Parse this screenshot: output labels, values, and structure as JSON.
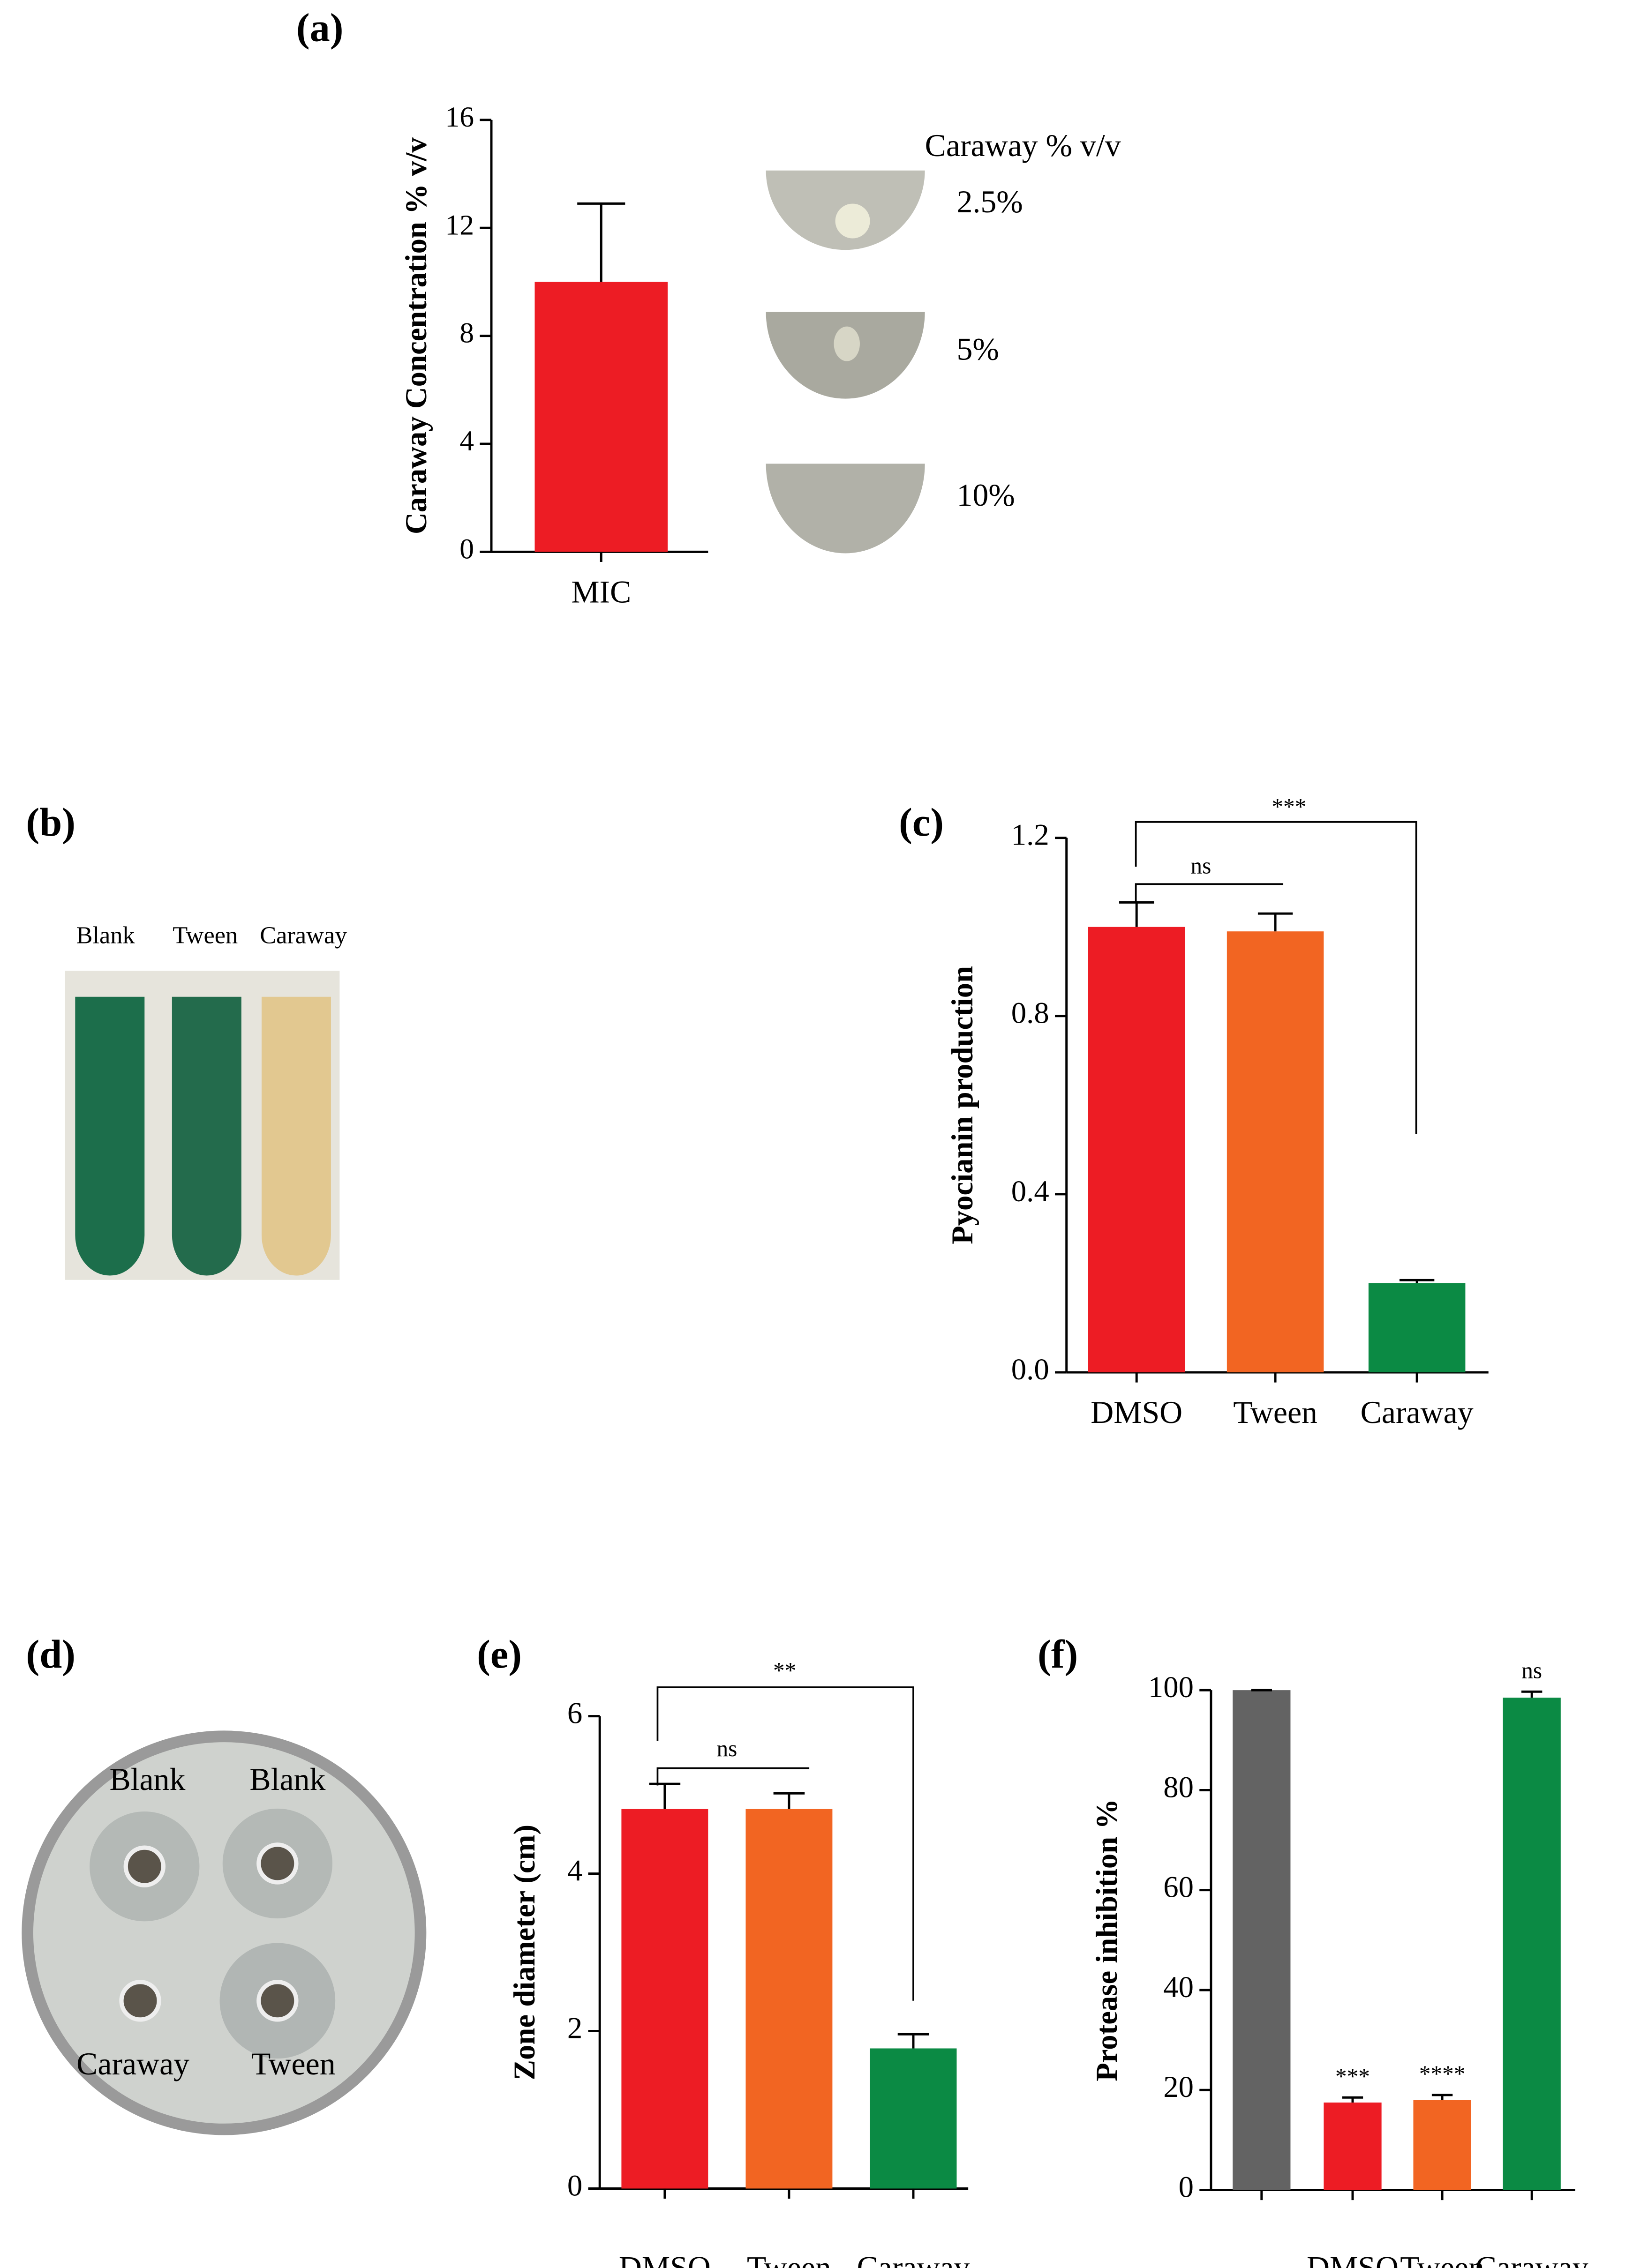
{
  "chart_data": [
    {
      "type": "bar",
      "panel_label": "(a)",
      "ylabel": "Caraway Concentration % v/v",
      "categories": [
        "MIC"
      ],
      "values": [
        10
      ],
      "errors": [
        2.9
      ],
      "colors": [
        "#ed1c24"
      ],
      "ylim": [
        0,
        16
      ],
      "yticks": [
        0,
        4,
        8,
        12,
        16
      ]
    },
    {
      "type": "bar",
      "panel_label": "(c)",
      "ylabel": "Pyocianin production",
      "categories": [
        "DMSO",
        "Tween",
        "Caraway"
      ],
      "values": [
        1.0,
        0.99,
        0.2
      ],
      "errors": [
        0.055,
        0.04,
        0.007
      ],
      "colors": [
        "#ed1c24",
        "#f26522",
        "#0b8a44"
      ],
      "ylim": [
        0,
        1.2
      ],
      "yticks": [
        {
          "value": 0,
          "label": "0.0"
        },
        0.4,
        0.8,
        1.2
      ],
      "annotations": [
        "ns",
        "***"
      ]
    },
    {
      "type": "bar",
      "panel_label": "(e)",
      "ylabel": "Zone diameter (cm)",
      "categories": [
        "DMSO",
        "Tween",
        "Caraway"
      ],
      "values": [
        4.82,
        4.82,
        1.78
      ],
      "errors": [
        0.32,
        0.2,
        0.18
      ],
      "colors": [
        "#ed1c24",
        "#f26522",
        "#0b8a44"
      ],
      "ylim": [
        0,
        6
      ],
      "yticks": [
        0,
        2,
        4,
        6
      ],
      "annotations": [
        "ns",
        "**"
      ]
    },
    {
      "type": "bar",
      "panel_label": "(f)",
      "ylabel": "Protease inhibition %",
      "categories": [
        "-",
        "DMSO",
        "Tween",
        "Caraway"
      ],
      "values": [
        100,
        17.5,
        18,
        98.5
      ],
      "errors": [
        0,
        1,
        1,
        1.2
      ],
      "colors": [
        "#636363",
        "#ed1c24",
        "#f26522",
        "#0b8a44"
      ],
      "ylim": [
        0,
        100
      ],
      "yticks": [
        0,
        20,
        40,
        60,
        80,
        100
      ],
      "bar_labels": [
        null,
        "***",
        "****",
        "ns"
      ]
    }
  ],
  "photos": {
    "plates_a": {
      "title": "Caraway % v/v",
      "labels": [
        "2.5%",
        "5%",
        "10%"
      ]
    },
    "tubes_b": {
      "panel_label": "(b)",
      "labels": [
        "Blank",
        "Tween",
        "Caraway"
      ]
    },
    "plate_d": {
      "panel_label": "(d)",
      "labels": [
        "Blank",
        "Blank",
        "Caraway",
        "Tween"
      ]
    }
  }
}
